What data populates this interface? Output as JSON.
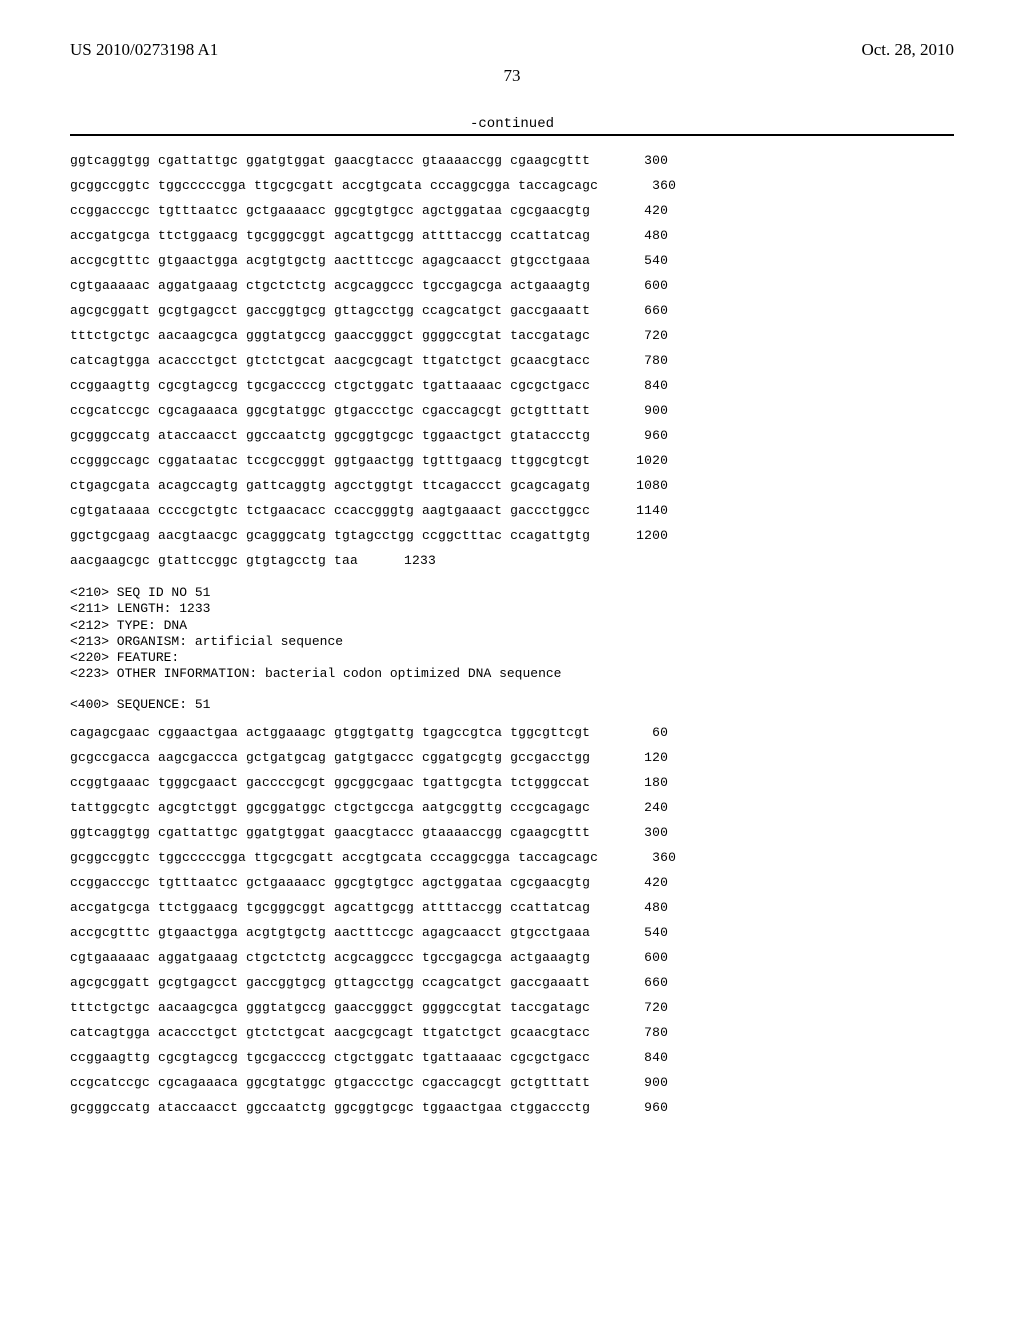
{
  "header": {
    "pub_number": "US 2010/0273198 A1",
    "pub_date": "Oct. 28, 2010",
    "page_number": "73"
  },
  "continued_label": "-continued",
  "block1": [
    {
      "seq": "ggtcaggtgg cgattattgc ggatgtggat gaacgtaccc gtaaaaccgg cgaagcgttt",
      "num": "300"
    },
    {
      "seq": "gcggccggtc tggcccccgga ttgcgcgatt accgtgcata cccaggcgga taccagcagc",
      "num": "360"
    },
    {
      "seq": "ccggacccgc tgtttaatcc gctgaaaacc ggcgtgtgcc agctggataa cgcgaacgtg",
      "num": "420"
    },
    {
      "seq": "accgatgcga ttctggaacg tgcgggcggt agcattgcgg attttaccgg ccattatcag",
      "num": "480"
    },
    {
      "seq": "accgcgtttc gtgaactgga acgtgtgctg aactttccgc agagcaacct gtgcctgaaa",
      "num": "540"
    },
    {
      "seq": "cgtgaaaaac aggatgaaag ctgctctctg acgcaggccc tgccgagcga actgaaagtg",
      "num": "600"
    },
    {
      "seq": "agcgcggatt gcgtgagcct gaccggtgcg gttagcctgg ccagcatgct gaccgaaatt",
      "num": "660"
    },
    {
      "seq": "tttctgctgc aacaagcgca gggtatgccg gaaccgggct ggggccgtat taccgatagc",
      "num": "720"
    },
    {
      "seq": "catcagtgga acaccctgct gtctctgcat aacgcgcagt ttgatctgct gcaacgtacc",
      "num": "780"
    },
    {
      "seq": "ccggaagttg cgcgtagccg tgcgaccccg ctgctggatc tgattaaaac cgcgctgacc",
      "num": "840"
    },
    {
      "seq": "ccgcatccgc cgcagaaaca ggcgtatggc gtgaccctgc cgaccagcgt gctgtttatt",
      "num": "900"
    },
    {
      "seq": "gcgggccatg ataccaacct ggccaatctg ggcggtgcgc tggaactgct gtataccctg",
      "num": "960"
    },
    {
      "seq": "ccgggccagc cggataatac tccgccgggt ggtgaactgg tgtttgaacg ttggcgtcgt",
      "num": "1020"
    },
    {
      "seq": "ctgagcgata acagccagtg gattcaggtg agcctggtgt ttcagaccct gcagcagatg",
      "num": "1080"
    },
    {
      "seq": "cgtgataaaa ccccgctgtc tctgaacacc ccaccgggtg aagtgaaact gaccctggcc",
      "num": "1140"
    },
    {
      "seq": "ggctgcgaag aacgtaacgc gcagggcatg tgtagcctgg ccggctttac ccagattgtg",
      "num": "1200"
    },
    {
      "seq": "aacgaagcgc gtattccggc gtgtagcctg taa",
      "num": "1233"
    }
  ],
  "meta_block": [
    "<210> SEQ ID NO 51",
    "<211> LENGTH: 1233",
    "<212> TYPE: DNA",
    "<213> ORGANISM: artificial sequence",
    "<220> FEATURE:",
    "<223> OTHER INFORMATION: bacterial codon optimized DNA sequence"
  ],
  "sequence_label": "<400> SEQUENCE: 51",
  "block2": [
    {
      "seq": "cagagcgaac cggaactgaa actggaaagc gtggtgattg tgagccgtca tggcgttcgt",
      "num": "60"
    },
    {
      "seq": "gcgccgacca aagcgaccca gctgatgcag gatgtgaccc cggatgcgtg gccgacctgg",
      "num": "120"
    },
    {
      "seq": "ccggtgaaac tgggcgaact gaccccgcgt ggcggcgaac tgattgcgta tctgggccat",
      "num": "180"
    },
    {
      "seq": "tattggcgtc agcgtctggt ggcggatggc ctgctgccga aatgcggttg cccgcagagc",
      "num": "240"
    },
    {
      "seq": "ggtcaggtgg cgattattgc ggatgtggat gaacgtaccc gtaaaaccgg cgaagcgttt",
      "num": "300"
    },
    {
      "seq": "gcggccggtc tggcccccgga ttgcgcgatt accgtgcata cccaggcgga taccagcagc",
      "num": "360"
    },
    {
      "seq": "ccggacccgc tgtttaatcc gctgaaaacc ggcgtgtgcc agctggataa cgcgaacgtg",
      "num": "420"
    },
    {
      "seq": "accgatgcga ttctggaacg tgcgggcggt agcattgcgg attttaccgg ccattatcag",
      "num": "480"
    },
    {
      "seq": "accgcgtttc gtgaactgga acgtgtgctg aactttccgc agagcaacct gtgcctgaaa",
      "num": "540"
    },
    {
      "seq": "cgtgaaaaac aggatgaaag ctgctctctg acgcaggccc tgccgagcga actgaaagtg",
      "num": "600"
    },
    {
      "seq": "agcgcggatt gcgtgagcct gaccggtgcg gttagcctgg ccagcatgct gaccgaaatt",
      "num": "660"
    },
    {
      "seq": "tttctgctgc aacaagcgca gggtatgccg gaaccgggct ggggccgtat taccgatagc",
      "num": "720"
    },
    {
      "seq": "catcagtgga acaccctgct gtctctgcat aacgcgcagt ttgatctgct gcaacgtacc",
      "num": "780"
    },
    {
      "seq": "ccggaagttg cgcgtagccg tgcgaccccg ctgctggatc tgattaaaac cgcgctgacc",
      "num": "840"
    },
    {
      "seq": "ccgcatccgc cgcagaaaca ggcgtatggc gtgaccctgc cgaccagcgt gctgtttatt",
      "num": "900"
    },
    {
      "seq": "gcgggccatg ataccaacct ggccaatctg ggcggtgcgc tggaactgaa ctggaccctg",
      "num": "960"
    }
  ],
  "colors": {
    "text": "#000000",
    "background": "#ffffff",
    "rule": "#000000"
  },
  "typography": {
    "header_font": "Times New Roman",
    "header_size_pt": 13,
    "mono_font": "Courier New",
    "mono_size_pt": 10
  }
}
